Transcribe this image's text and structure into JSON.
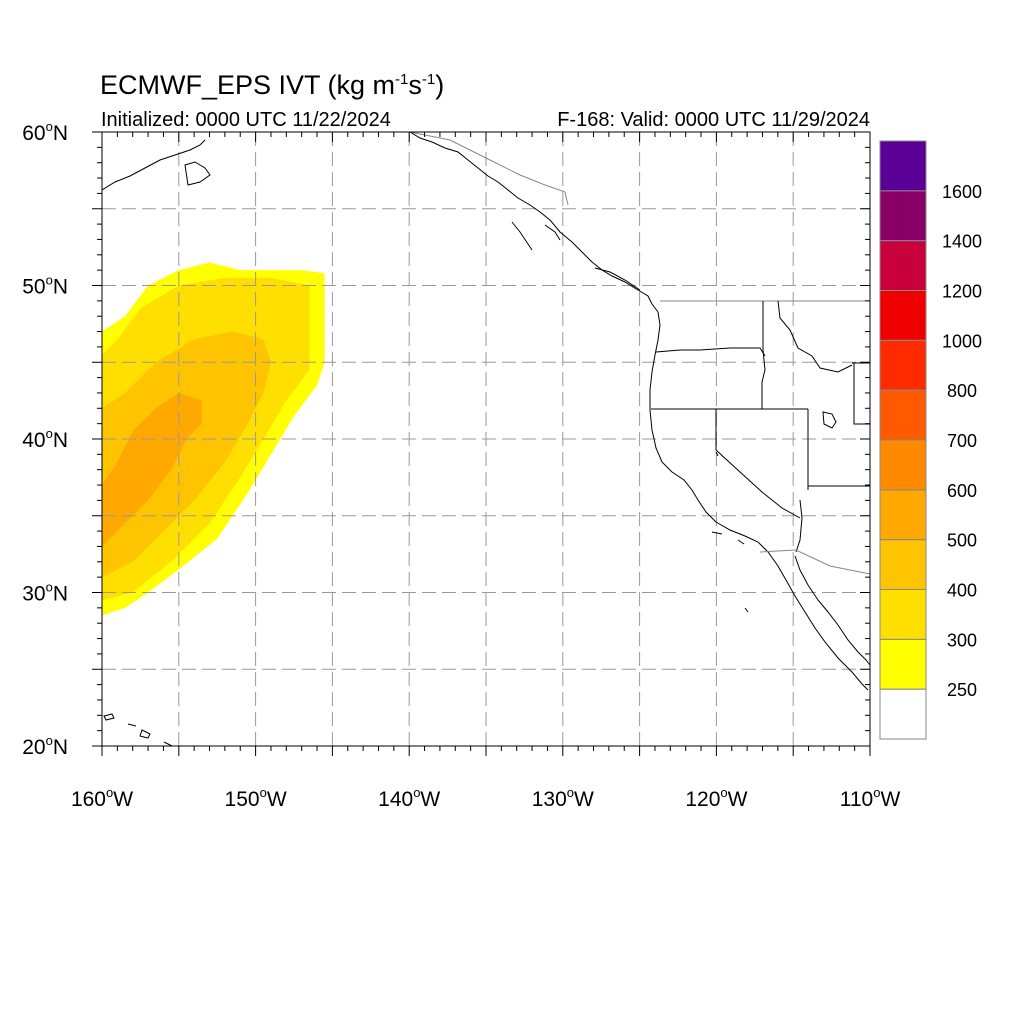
{
  "title": {
    "prefix": "ECMWF_EPS IVT (kg m",
    "exp1": "-1",
    "mid": "s",
    "exp2": "-1",
    "suffix": ")"
  },
  "initialized": "Initialized: 0000 UTC 11/22/2024",
  "valid": "F-168: Valid: 0000 UTC 11/29/2024",
  "map": {
    "lon_range": [
      -160,
      -110
    ],
    "lat_range": [
      20,
      60
    ],
    "lon_ticks": [
      {
        "value": -160,
        "num": "160",
        "hemi": "W"
      },
      {
        "value": -150,
        "num": "150",
        "hemi": "W"
      },
      {
        "value": -140,
        "num": "140",
        "hemi": "W"
      },
      {
        "value": -130,
        "num": "130",
        "hemi": "W"
      },
      {
        "value": -120,
        "num": "120",
        "hemi": "W"
      },
      {
        "value": -110,
        "num": "110",
        "hemi": "W"
      }
    ],
    "lat_ticks": [
      {
        "value": 20,
        "num": "20",
        "hemi": "N"
      },
      {
        "value": 30,
        "num": "30",
        "hemi": "N"
      },
      {
        "value": 40,
        "num": "40",
        "hemi": "N"
      },
      {
        "value": 50,
        "num": "50",
        "hemi": "N"
      },
      {
        "value": 60,
        "num": "60",
        "hemi": "N"
      }
    ],
    "grid_spacing_deg": 5,
    "grid_style": "dashed gray"
  },
  "ivt_field": {
    "description_levels": [
      250,
      300,
      400,
      500,
      600
    ],
    "regions": [
      {
        "level": 250,
        "color": "#ffff00",
        "polygon_lonlat": [
          [
            -160,
            28.5
          ],
          [
            -158.5,
            29
          ],
          [
            -157,
            30
          ],
          [
            -155,
            31.5
          ],
          [
            -152.5,
            33.5
          ],
          [
            -150.5,
            36.5
          ],
          [
            -149,
            39
          ],
          [
            -147.5,
            41.5
          ],
          [
            -146,
            43.5
          ],
          [
            -145.5,
            45
          ],
          [
            -145.5,
            50.8
          ],
          [
            -147,
            51
          ],
          [
            -149,
            51
          ],
          [
            -151,
            51
          ],
          [
            -153,
            51.5
          ],
          [
            -155,
            51
          ],
          [
            -157,
            50
          ],
          [
            -158.5,
            48
          ],
          [
            -160,
            47
          ]
        ]
      },
      {
        "level": 300,
        "color": "#ffdf00",
        "polygon_lonlat": [
          [
            -160,
            29.5
          ],
          [
            -158,
            30
          ],
          [
            -155.5,
            32
          ],
          [
            -153,
            34.5
          ],
          [
            -151,
            37.5
          ],
          [
            -149.5,
            40
          ],
          [
            -148,
            42.5
          ],
          [
            -146.5,
            44.5
          ],
          [
            -146.5,
            50
          ],
          [
            -149,
            50.5
          ],
          [
            -152,
            50.5
          ],
          [
            -155,
            50
          ],
          [
            -157.5,
            48.5
          ],
          [
            -159,
            46.5
          ],
          [
            -160,
            45.5
          ]
        ]
      },
      {
        "level": 400,
        "color": "#ffc400",
        "polygon_lonlat": [
          [
            -160,
            31
          ],
          [
            -158,
            32
          ],
          [
            -156,
            34
          ],
          [
            -154,
            36
          ],
          [
            -152,
            38.5
          ],
          [
            -150.5,
            41
          ],
          [
            -149.5,
            43
          ],
          [
            -149,
            45
          ],
          [
            -149.5,
            46.5
          ],
          [
            -151.5,
            47
          ],
          [
            -154,
            46.5
          ],
          [
            -156.5,
            45
          ],
          [
            -158.5,
            43
          ],
          [
            -160,
            42
          ]
        ]
      },
      {
        "level": 500,
        "color": "#ffa800",
        "polygon_lonlat": [
          [
            -160,
            33
          ],
          [
            -158.5,
            34.5
          ],
          [
            -157,
            36
          ],
          [
            -155.5,
            38
          ],
          [
            -154.5,
            40
          ],
          [
            -153.5,
            41
          ],
          [
            -153.5,
            42.5
          ],
          [
            -155,
            43
          ],
          [
            -156.5,
            42
          ],
          [
            -158,
            40.5
          ],
          [
            -159,
            38.5
          ],
          [
            -160,
            37
          ]
        ]
      }
    ]
  },
  "colorbar": {
    "labels": [
      "250",
      "300",
      "400",
      "500",
      "600",
      "700",
      "800",
      "1000",
      "1200",
      "1400",
      "1600"
    ],
    "colors_bottom_to_top": [
      "#ffffff",
      "#ffff00",
      "#ffdf00",
      "#ffc400",
      "#ffa800",
      "#ff8a00",
      "#ff5a00",
      "#ff2a00",
      "#ee0000",
      "#c8003c",
      "#880066",
      "#5a0096"
    ]
  },
  "icons": {
    "coastlines": "coastline-lines",
    "boundaries": "state-boundary-lines"
  }
}
